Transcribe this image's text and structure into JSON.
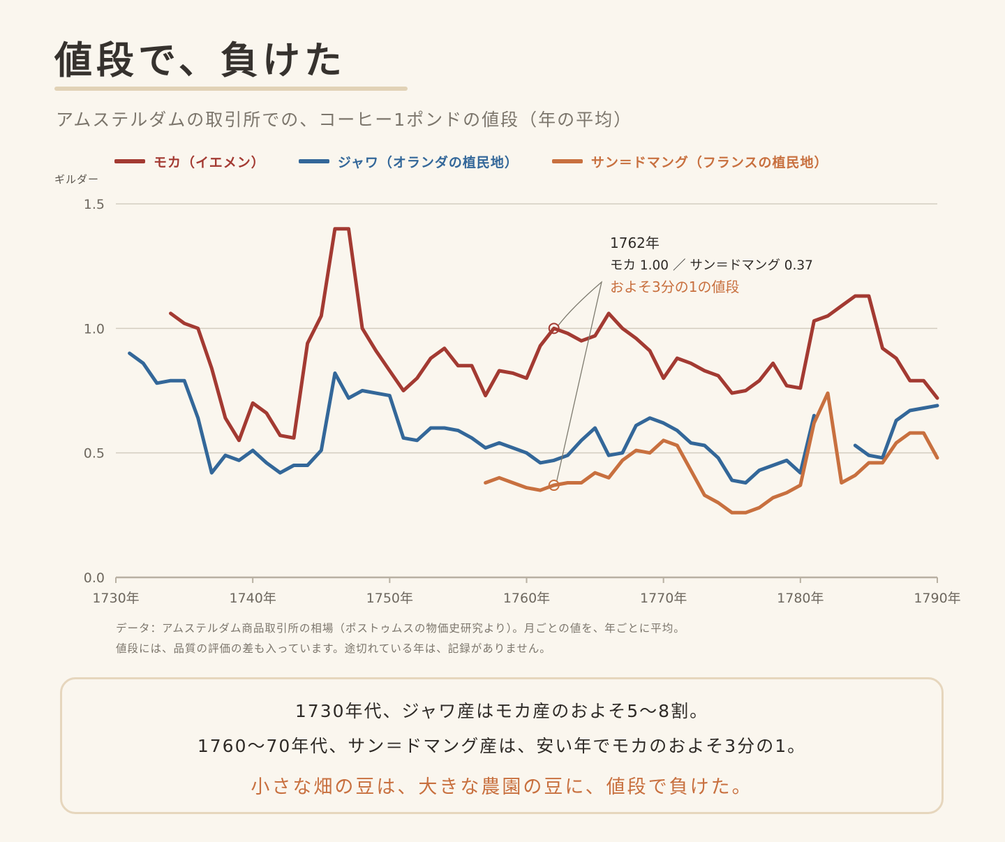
{
  "title": "値段で、負けた",
  "subtitle": "アムステルダムの取引所での、コーヒー1ポンドの値段（年の平均）",
  "colors": {
    "background": "#faf6ee",
    "mocha": "#a33a32",
    "java": "#336799",
    "saint_domingue": "#c8703f",
    "grid": "#d3cdc0",
    "axis": "#b8b0a2",
    "accent": "#c8703f"
  },
  "chart_data": {
    "type": "line",
    "ylabel": "ギルダー",
    "xlim": [
      1730,
      1790
    ],
    "ylim": [
      0,
      1.5
    ],
    "x_ticks": [
      1730,
      1740,
      1750,
      1760,
      1770,
      1780,
      1790
    ],
    "x_tick_labels": [
      "1730年",
      "1740年",
      "1750年",
      "1760年",
      "1770年",
      "1780年",
      "1790年"
    ],
    "y_ticks": [
      0,
      0.5,
      1.0,
      1.5
    ],
    "y_tick_labels": [
      "0.0",
      "0.5",
      "1.0",
      "1.5"
    ],
    "grid": true,
    "legend_position": "top-left",
    "series": [
      {
        "name": "モカ（イエメン）",
        "color": "#a33a32",
        "points": [
          [
            1734,
            1.06
          ],
          [
            1735,
            1.02
          ],
          [
            1736,
            1.0
          ],
          [
            1737,
            0.84
          ],
          [
            1738,
            0.64
          ],
          [
            1739,
            0.55
          ],
          [
            1740,
            0.7
          ],
          [
            1741,
            0.66
          ],
          [
            1742,
            0.57
          ],
          [
            1743,
            0.56
          ],
          [
            1744,
            0.94
          ],
          [
            1745,
            1.05
          ],
          [
            1746,
            1.4
          ],
          [
            1747,
            1.4
          ],
          [
            1748,
            1.0
          ],
          [
            1749,
            0.91
          ],
          [
            1750,
            0.83
          ],
          [
            1751,
            0.75
          ],
          [
            1752,
            0.8
          ],
          [
            1753,
            0.88
          ],
          [
            1754,
            0.92
          ],
          [
            1755,
            0.85
          ],
          [
            1756,
            0.85
          ],
          [
            1757,
            0.73
          ],
          [
            1758,
            0.83
          ],
          [
            1759,
            0.82
          ],
          [
            1760,
            0.8
          ],
          [
            1761,
            0.93
          ],
          [
            1762,
            1.0
          ],
          [
            1763,
            0.98
          ],
          [
            1764,
            0.95
          ],
          [
            1765,
            0.97
          ],
          [
            1766,
            1.06
          ],
          [
            1767,
            1.0
          ],
          [
            1768,
            0.96
          ],
          [
            1769,
            0.91
          ],
          [
            1770,
            0.8
          ],
          [
            1771,
            0.88
          ],
          [
            1772,
            0.86
          ],
          [
            1773,
            0.83
          ],
          [
            1774,
            0.81
          ],
          [
            1775,
            0.74
          ],
          [
            1776,
            0.75
          ],
          [
            1777,
            0.79
          ],
          [
            1778,
            0.86
          ],
          [
            1779,
            0.77
          ],
          [
            1780,
            0.76
          ],
          [
            1781,
            1.03
          ],
          [
            1782,
            1.05
          ],
          [
            1783,
            1.09
          ],
          [
            1784,
            1.13
          ],
          [
            1785,
            1.13
          ],
          [
            1786,
            0.92
          ],
          [
            1787,
            0.88
          ],
          [
            1788,
            0.79
          ],
          [
            1789,
            0.79
          ],
          [
            1790,
            0.72
          ]
        ]
      },
      {
        "name": "ジャワ（オランダの植民地）",
        "color": "#336799",
        "points": [
          [
            1731,
            0.9
          ],
          [
            1732,
            0.86
          ],
          [
            1733,
            0.78
          ],
          [
            1734,
            0.79
          ],
          [
            1735,
            0.79
          ],
          [
            1736,
            0.64
          ],
          [
            1737,
            0.42
          ],
          [
            1738,
            0.49
          ],
          [
            1739,
            0.47
          ],
          [
            1740,
            0.51
          ],
          [
            1741,
            0.46
          ],
          [
            1742,
            0.42
          ],
          [
            1743,
            0.45
          ],
          [
            1744,
            0.45
          ],
          [
            1745,
            0.51
          ],
          [
            1746,
            0.82
          ],
          [
            1747,
            0.72
          ],
          [
            1748,
            0.75
          ],
          [
            1749,
            0.74
          ],
          [
            1750,
            0.73
          ],
          [
            1751,
            0.56
          ],
          [
            1752,
            0.55
          ],
          [
            1753,
            0.6
          ],
          [
            1754,
            0.6
          ],
          [
            1755,
            0.59
          ],
          [
            1756,
            0.56
          ],
          [
            1757,
            0.52
          ],
          [
            1758,
            0.54
          ],
          [
            1759,
            0.52
          ],
          [
            1760,
            0.5
          ],
          [
            1761,
            0.46
          ],
          [
            1762,
            0.47
          ],
          [
            1763,
            0.49
          ],
          [
            1764,
            0.55
          ],
          [
            1765,
            0.6
          ],
          [
            1766,
            0.49
          ],
          [
            1767,
            0.5
          ],
          [
            1768,
            0.61
          ],
          [
            1769,
            0.64
          ],
          [
            1770,
            0.62
          ],
          [
            1771,
            0.59
          ],
          [
            1772,
            0.54
          ],
          [
            1773,
            0.53
          ],
          [
            1774,
            0.48
          ],
          [
            1775,
            0.39
          ],
          [
            1776,
            0.38
          ],
          [
            1777,
            0.43
          ],
          [
            1778,
            0.45
          ],
          [
            1779,
            0.47
          ],
          [
            1780,
            0.42
          ],
          [
            1781,
            0.65
          ],
          null,
          [
            1784,
            0.53
          ],
          [
            1785,
            0.49
          ],
          [
            1786,
            0.48
          ],
          [
            1787,
            0.63
          ],
          [
            1788,
            0.67
          ],
          [
            1789,
            0.68
          ],
          [
            1790,
            0.69
          ]
        ]
      },
      {
        "name": "サン＝ドマング（フランスの植民地）",
        "color": "#c8703f",
        "points": [
          [
            1757,
            0.38
          ],
          [
            1758,
            0.4
          ],
          [
            1759,
            0.38
          ],
          [
            1760,
            0.36
          ],
          [
            1761,
            0.35
          ],
          [
            1762,
            0.37
          ],
          [
            1763,
            0.38
          ],
          [
            1764,
            0.38
          ],
          [
            1765,
            0.42
          ],
          [
            1766,
            0.4
          ],
          [
            1767,
            0.47
          ],
          [
            1768,
            0.51
          ],
          [
            1769,
            0.5
          ],
          [
            1770,
            0.55
          ],
          [
            1771,
            0.53
          ],
          [
            1772,
            0.43
          ],
          [
            1773,
            0.33
          ],
          [
            1774,
            0.3
          ],
          [
            1775,
            0.26
          ],
          [
            1776,
            0.26
          ],
          [
            1777,
            0.28
          ],
          [
            1778,
            0.32
          ],
          [
            1779,
            0.34
          ],
          [
            1780,
            0.37
          ],
          [
            1781,
            0.62
          ],
          [
            1782,
            0.74
          ],
          [
            1783,
            0.38
          ],
          [
            1784,
            0.41
          ],
          [
            1785,
            0.46
          ],
          [
            1786,
            0.46
          ],
          [
            1787,
            0.54
          ],
          [
            1788,
            0.58
          ],
          [
            1789,
            0.58
          ],
          [
            1790,
            0.48
          ]
        ]
      }
    ],
    "annotation": {
      "year_label": "1762年",
      "values_label": "モカ 1.00 ／ サン＝ドマング 0.37",
      "conclusion": "およそ3分の1の値段",
      "x": 1762,
      "mocha_value": 1.0,
      "saint_domingue_value": 0.37
    }
  },
  "notes": [
    "データ：アムステルダム商品取引所の相場（ポストゥムスの物価史研究より）。月ごとの値を、年ごとに平均。",
    "値段には、品質の評価の差も入っています。途切れている年は、記録がありません。"
  ],
  "summary": {
    "line1": "1730年代、ジャワ産はモカ産のおよそ5〜8割。",
    "line2": "1760〜70年代、サン＝ドマング産は、安い年でモカのおよそ3分の1。",
    "line3": "小さな畑の豆は、大きな農園の豆に、値段で負けた。"
  }
}
